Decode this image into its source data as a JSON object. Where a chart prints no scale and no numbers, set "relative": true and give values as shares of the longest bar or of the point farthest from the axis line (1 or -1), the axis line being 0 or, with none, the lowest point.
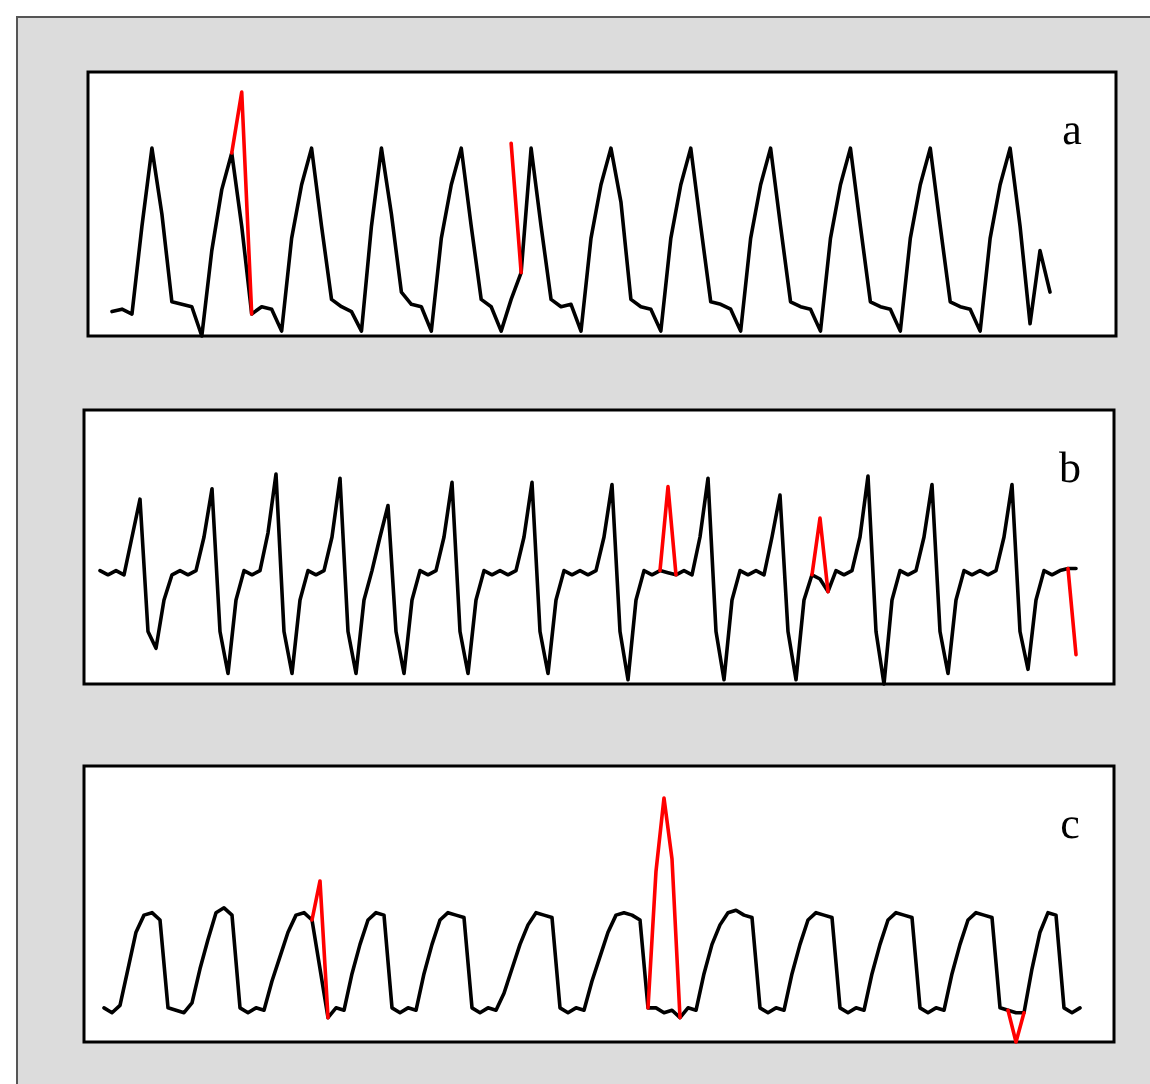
{
  "chart_data": [
    {
      "type": "line",
      "title": "a",
      "relative": true,
      "categories": [
        null,
        null,
        null,
        null,
        null,
        null,
        null,
        null,
        null,
        null,
        null,
        null,
        null,
        null,
        null,
        null,
        null,
        null,
        null,
        null,
        null,
        null,
        null,
        null,
        null,
        null,
        null,
        null,
        null,
        null,
        null,
        null,
        null,
        null,
        null,
        null,
        null,
        null,
        null,
        null,
        null,
        null,
        null,
        null,
        null,
        null,
        null,
        null,
        null,
        null,
        null,
        null,
        null,
        null,
        null,
        null,
        null,
        null,
        null,
        null,
        null,
        null,
        null,
        null,
        null,
        null,
        null,
        null,
        null,
        null,
        null,
        null,
        null,
        null,
        null,
        null,
        null,
        null,
        null,
        null,
        null,
        null,
        null,
        null,
        null,
        null,
        null,
        null,
        null,
        null,
        null,
        null,
        null,
        null,
        null
      ],
      "series": [
        {
          "color": "#000000",
          "values": [
            0.1,
            0.11,
            0.09,
            0.45,
            0.77,
            0.5,
            0.14,
            0.13,
            0.12,
            0.0,
            0.35,
            0.6,
            0.75,
            0.45,
            0.09,
            0.12,
            0.11,
            0.02,
            0.4,
            0.62,
            0.77,
            0.45,
            0.15,
            0.12,
            0.1,
            0.02,
            0.45,
            0.77,
            0.5,
            0.18,
            0.13,
            0.12,
            0.02,
            0.4,
            0.62,
            0.77,
            0.45,
            0.15,
            0.12,
            0.02,
            0.15,
            0.26,
            0.77,
            0.45,
            0.15,
            0.12,
            0.13,
            0.02,
            0.4,
            0.62,
            0.77,
            0.55,
            0.15,
            0.12,
            0.11,
            0.02,
            0.4,
            0.62,
            0.77,
            0.45,
            0.14,
            0.13,
            0.11,
            0.02,
            0.4,
            0.62,
            0.77,
            0.45,
            0.14,
            0.12,
            0.11,
            0.02,
            0.4,
            0.62,
            0.77,
            0.45,
            0.14,
            0.12,
            0.11,
            0.02,
            0.4,
            0.62,
            0.77,
            0.45,
            0.14,
            0.12,
            0.11,
            0.02,
            0.4,
            0.62,
            0.77,
            0.45,
            0.05,
            0.35,
            0.18
          ]
        },
        {
          "color": "#ff0000",
          "values": [
            null,
            null,
            null,
            null,
            null,
            null,
            null,
            null,
            null,
            null,
            null,
            null,
            0.75,
            1.0,
            0.09,
            null,
            null,
            null,
            null,
            null,
            null,
            null,
            null,
            null,
            null,
            null,
            null,
            null,
            null,
            null,
            null,
            null,
            null,
            null,
            null,
            null,
            null,
            null,
            null,
            null,
            0.79,
            0.26,
            null,
            null,
            null,
            null,
            null,
            null,
            null,
            null,
            null,
            null,
            null,
            null,
            null,
            null,
            null,
            null,
            null,
            null,
            null,
            null,
            null,
            null,
            null,
            null,
            null,
            null,
            null,
            null,
            null,
            null,
            null,
            null,
            null,
            null,
            null,
            null,
            null,
            null,
            null,
            null,
            null,
            null,
            null,
            null,
            null,
            null,
            null,
            null,
            null,
            null,
            null,
            null,
            null
          ]
        }
      ]
    },
    {
      "type": "line",
      "title": "b",
      "relative": true,
      "categories": [
        null,
        null,
        null,
        null,
        null,
        null,
        null,
        null,
        null,
        null,
        null,
        null,
        null,
        null,
        null,
        null,
        null,
        null,
        null,
        null,
        null,
        null,
        null,
        null,
        null,
        null,
        null,
        null,
        null,
        null,
        null,
        null,
        null,
        null,
        null,
        null,
        null,
        null,
        null,
        null,
        null,
        null,
        null,
        null,
        null,
        null,
        null,
        null,
        null,
        null,
        null,
        null,
        null,
        null,
        null,
        null,
        null,
        null,
        null,
        null,
        null,
        null,
        null,
        null,
        null,
        null,
        null,
        null,
        null,
        null,
        null,
        null,
        null,
        null,
        null,
        null,
        null,
        null,
        null,
        null,
        null,
        null,
        null,
        null,
        null,
        null,
        null,
        null,
        null,
        null,
        null,
        null,
        null,
        null,
        null,
        null,
        null,
        null,
        null,
        null,
        null,
        null,
        null,
        null,
        null,
        null,
        null,
        null,
        null,
        null,
        null,
        null,
        null,
        null,
        null,
        null,
        null,
        null,
        null,
        null,
        null,
        null,
        null
      ],
      "series": [
        {
          "color": "#000000",
          "values": [
            0.54,
            0.52,
            0.54,
            0.52,
            0.7,
            0.88,
            0.25,
            0.17,
            0.4,
            0.52,
            0.54,
            0.52,
            0.54,
            0.7,
            0.93,
            0.25,
            0.05,
            0.4,
            0.54,
            0.52,
            0.54,
            0.72,
            1.0,
            0.25,
            0.05,
            0.4,
            0.54,
            0.52,
            0.54,
            0.7,
            0.98,
            0.25,
            0.05,
            0.4,
            0.54,
            0.7,
            0.85,
            0.25,
            0.05,
            0.4,
            0.54,
            0.52,
            0.54,
            0.7,
            0.96,
            0.25,
            0.05,
            0.4,
            0.54,
            0.52,
            0.54,
            0.52,
            0.54,
            0.7,
            0.96,
            0.25,
            0.05,
            0.4,
            0.54,
            0.52,
            0.54,
            0.52,
            0.54,
            0.7,
            0.95,
            0.25,
            0.02,
            0.4,
            0.54,
            0.52,
            0.54,
            0.53,
            0.52,
            0.54,
            0.52,
            0.7,
            0.98,
            0.25,
            0.02,
            0.4,
            0.54,
            0.52,
            0.54,
            0.52,
            0.7,
            0.9,
            0.25,
            0.02,
            0.4,
            0.52,
            0.5,
            0.44,
            0.54,
            0.52,
            0.54,
            0.7,
            0.99,
            0.25,
            0.0,
            0.4,
            0.54,
            0.52,
            0.54,
            0.7,
            0.95,
            0.25,
            0.05,
            0.4,
            0.54,
            0.52,
            0.54,
            0.52,
            0.54,
            0.7,
            0.95,
            0.25,
            0.07,
            0.4,
            0.54,
            0.52,
            0.54,
            0.55,
            0.55
          ]
        },
        {
          "color": "#ff0000",
          "values": [
            null,
            null,
            null,
            null,
            null,
            null,
            null,
            null,
            null,
            null,
            null,
            null,
            null,
            null,
            null,
            null,
            null,
            null,
            null,
            null,
            null,
            null,
            null,
            null,
            null,
            null,
            null,
            null,
            null,
            null,
            null,
            null,
            null,
            null,
            null,
            null,
            null,
            null,
            null,
            null,
            null,
            null,
            null,
            null,
            null,
            null,
            null,
            null,
            null,
            null,
            null,
            null,
            null,
            null,
            null,
            null,
            null,
            null,
            null,
            null,
            null,
            null,
            null,
            null,
            null,
            null,
            null,
            null,
            null,
            null,
            0.54,
            0.94,
            0.52,
            null,
            null,
            null,
            null,
            null,
            null,
            null,
            null,
            null,
            null,
            null,
            null,
            null,
            null,
            null,
            null,
            0.52,
            0.79,
            0.44,
            null,
            null,
            null,
            null,
            null,
            null,
            null,
            null,
            null,
            null,
            null,
            null,
            null,
            null,
            null,
            null,
            null,
            null,
            null,
            null,
            null,
            null,
            null,
            null,
            null,
            null,
            null,
            null,
            null,
            0.55,
            0.14
          ]
        }
      ]
    },
    {
      "type": "line",
      "title": "c",
      "relative": true,
      "categories": [
        null,
        null,
        null,
        null,
        null,
        null,
        null,
        null,
        null,
        null,
        null,
        null,
        null,
        null,
        null,
        null,
        null,
        null,
        null,
        null,
        null,
        null,
        null,
        null,
        null,
        null,
        null,
        null,
        null,
        null,
        null,
        null,
        null,
        null,
        null,
        null,
        null,
        null,
        null,
        null,
        null,
        null,
        null,
        null,
        null,
        null,
        null,
        null,
        null,
        null,
        null,
        null,
        null,
        null,
        null,
        null,
        null,
        null,
        null,
        null,
        null,
        null,
        null,
        null,
        null,
        null,
        null,
        null,
        null,
        null,
        null,
        null,
        null,
        null,
        null,
        null,
        null,
        null,
        null,
        null,
        null,
        null,
        null,
        null,
        null,
        null,
        null,
        null,
        null,
        null,
        null,
        null,
        null,
        null,
        null,
        null,
        null,
        null,
        null,
        null,
        null,
        null,
        null,
        null,
        null,
        null,
        null,
        null,
        null,
        null,
        null,
        null,
        null,
        null,
        null,
        null,
        null,
        null,
        null,
        null,
        null,
        null,
        null
      ],
      "series": [
        {
          "color": "#000000",
          "values": [
            0.14,
            0.12,
            0.15,
            0.3,
            0.45,
            0.52,
            0.53,
            0.5,
            0.14,
            0.13,
            0.12,
            0.16,
            0.3,
            0.42,
            0.53,
            0.55,
            0.52,
            0.14,
            0.12,
            0.14,
            0.13,
            0.25,
            0.35,
            0.45,
            0.52,
            0.53,
            0.5,
            0.3,
            0.1,
            0.14,
            0.13,
            0.28,
            0.4,
            0.5,
            0.53,
            0.52,
            0.14,
            0.12,
            0.14,
            0.13,
            0.28,
            0.4,
            0.5,
            0.53,
            0.52,
            0.51,
            0.14,
            0.12,
            0.14,
            0.13,
            0.2,
            0.3,
            0.4,
            0.48,
            0.53,
            0.52,
            0.51,
            0.14,
            0.12,
            0.14,
            0.13,
            0.25,
            0.35,
            0.45,
            0.52,
            0.53,
            0.52,
            0.5,
            0.14,
            0.14,
            0.12,
            0.13,
            0.1,
            0.14,
            0.13,
            0.28,
            0.4,
            0.48,
            0.53,
            0.54,
            0.52,
            0.51,
            0.14,
            0.12,
            0.14,
            0.13,
            0.28,
            0.4,
            0.5,
            0.53,
            0.52,
            0.51,
            0.14,
            0.12,
            0.14,
            0.13,
            0.28,
            0.4,
            0.5,
            0.53,
            0.52,
            0.51,
            0.14,
            0.12,
            0.14,
            0.13,
            0.28,
            0.4,
            0.5,
            0.53,
            0.52,
            0.51,
            0.14,
            0.13,
            0.12,
            0.12,
            0.3,
            0.45,
            0.53,
            0.52,
            0.14,
            0.12,
            0.14
          ]
        },
        {
          "color": "#ff0000",
          "values": [
            null,
            null,
            null,
            null,
            null,
            null,
            null,
            null,
            null,
            null,
            null,
            null,
            null,
            null,
            null,
            null,
            null,
            null,
            null,
            null,
            null,
            null,
            null,
            null,
            null,
            null,
            0.5,
            0.66,
            0.1,
            null,
            null,
            null,
            null,
            null,
            null,
            null,
            null,
            null,
            null,
            null,
            null,
            null,
            null,
            null,
            null,
            null,
            null,
            null,
            null,
            null,
            null,
            null,
            null,
            null,
            null,
            null,
            null,
            null,
            null,
            null,
            null,
            null,
            null,
            null,
            null,
            null,
            null,
            null,
            0.14,
            0.7,
            1.0,
            0.75,
            0.1,
            null,
            null,
            null,
            null,
            null,
            null,
            null,
            null,
            null,
            null,
            null,
            null,
            null,
            null,
            null,
            null,
            null,
            null,
            null,
            null,
            null,
            null,
            null,
            null,
            null,
            null,
            null,
            null,
            null,
            null,
            null,
            null,
            null,
            null,
            null,
            null,
            null,
            null,
            null,
            null,
            0.13,
            0.0,
            0.12,
            null,
            null,
            null,
            null,
            null,
            null,
            null
          ]
        }
      ]
    }
  ]
}
